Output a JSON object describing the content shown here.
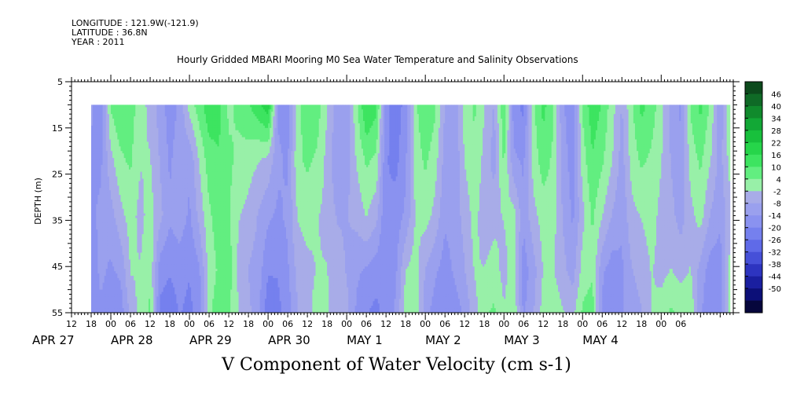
{
  "header": {
    "longitude": "LONGITUDE : 121.9W(-121.9)",
    "latitude": "LATITUDE : 36.8N",
    "year": "YEAR : 2011"
  },
  "chart_data": {
    "type": "heatmap",
    "title": "Hourly Gridded MBARI Mooring M0 Sea Water Temperature and Salinity Observations",
    "xlabel": "V Component of Water Velocity (cm s-1)",
    "ylabel": "DEPTH (m)",
    "yticks": [
      5,
      15,
      25,
      35,
      45,
      55
    ],
    "ylim": [
      5,
      55
    ],
    "y_reversed": true,
    "data_depth_range": [
      10,
      55
    ],
    "x_hours_range": [
      12,
      214
    ],
    "data_start_hour": 18,
    "data_end_hour": 213,
    "hour_tick_labels": [
      "12",
      "18",
      "00",
      "06",
      "12",
      "18",
      "00",
      "06",
      "12",
      "18",
      "00",
      "06",
      "12",
      "18",
      "00",
      "06",
      "12",
      "18",
      "00",
      "06",
      "12",
      "18",
      "00",
      "06",
      "12",
      "18",
      "00",
      "06",
      "12",
      "18",
      "00",
      "06"
    ],
    "date_labels": [
      {
        "label": "APR 27",
        "hour": 0
      },
      {
        "label": "APR 28",
        "hour": 24
      },
      {
        "label": "APR 29",
        "hour": 48
      },
      {
        "label": "APR 30",
        "hour": 72
      },
      {
        "label": "MAY  1",
        "hour": 96
      },
      {
        "label": "MAY  2",
        "hour": 120
      },
      {
        "label": "MAY  3",
        "hour": 144
      },
      {
        "label": "MAY  4",
        "hour": 168
      }
    ],
    "colorbar_labels": [
      "46",
      "40",
      "34",
      "28",
      "22",
      "16",
      "10",
      "4",
      "-2",
      "-8",
      "-14",
      "-20",
      "-26",
      "-32",
      "-38",
      "-44",
      "-50"
    ],
    "colorbar_colors": [
      "#0c4a1c",
      "#0f6a26",
      "#108a2c",
      "#12a836",
      "#18c03c",
      "#26d54a",
      "#3de460",
      "#62ee80",
      "#98f0a8",
      "#a8ace8",
      "#9aa0ee",
      "#8a92f0",
      "#7580ee",
      "#5f6ae8",
      "#4650d8",
      "#2d34c0",
      "#1a1fa0",
      "#0c0f78",
      "#06063c"
    ],
    "value_range": [
      -50,
      52
    ],
    "field": {
      "depth_centers": [
        10,
        22,
        34,
        46,
        55
      ],
      "columns": [
        {
          "hour": 18,
          "values": [
            -6,
            -8,
            -8,
            -10,
            -8
          ]
        },
        {
          "hour": 21,
          "values": [
            -12,
            -8,
            -6,
            -6,
            -8
          ]
        },
        {
          "hour": 24,
          "values": [
            10,
            2,
            -4,
            -8,
            -10
          ]
        },
        {
          "hour": 27,
          "values": [
            14,
            8,
            2,
            -6,
            -10
          ]
        },
        {
          "hour": 30,
          "values": [
            12,
            10,
            6,
            4,
            0
          ]
        },
        {
          "hour": 33,
          "values": [
            6,
            4,
            2,
            4,
            6
          ]
        },
        {
          "hour": 36,
          "values": [
            2,
            4,
            6,
            8,
            10
          ]
        },
        {
          "hour": 39,
          "values": [
            -4,
            -2,
            0,
            -10,
            -14
          ]
        },
        {
          "hour": 42,
          "values": [
            -10,
            -8,
            -6,
            -12,
            -16
          ]
        },
        {
          "hour": 45,
          "values": [
            -6,
            -4,
            -4,
            -10,
            -12
          ]
        },
        {
          "hour": 48,
          "values": [
            6,
            -6,
            -8,
            -12,
            -14
          ]
        },
        {
          "hour": 51,
          "values": [
            12,
            4,
            0,
            -8,
            -10
          ]
        },
        {
          "hour": 54,
          "values": [
            18,
            12,
            8,
            6,
            8
          ]
        },
        {
          "hour": 57,
          "values": [
            16,
            14,
            12,
            10,
            12
          ]
        },
        {
          "hour": 60,
          "values": [
            8,
            10,
            10,
            12,
            10
          ]
        },
        {
          "hour": 63,
          "values": [
            10,
            8,
            4,
            2,
            4
          ]
        },
        {
          "hour": 66,
          "values": [
            14,
            6,
            2,
            -2,
            0
          ]
        },
        {
          "hour": 69,
          "values": [
            18,
            4,
            -2,
            -4,
            -6
          ]
        },
        {
          "hour": 72,
          "values": [
            24,
            2,
            -6,
            -12,
            -16
          ]
        },
        {
          "hour": 75,
          "values": [
            -8,
            -6,
            -8,
            -12,
            -14
          ]
        },
        {
          "hour": 78,
          "values": [
            -10,
            -8,
            -6,
            -8,
            -10
          ]
        },
        {
          "hour": 81,
          "values": [
            6,
            8,
            4,
            0,
            -2
          ]
        },
        {
          "hour": 84,
          "values": [
            14,
            10,
            6,
            2,
            2
          ]
        },
        {
          "hour": 87,
          "values": [
            12,
            8,
            4,
            4,
            6
          ]
        },
        {
          "hour": 90,
          "values": [
            4,
            2,
            2,
            4,
            4
          ]
        },
        {
          "hour": 93,
          "values": [
            -4,
            -6,
            -2,
            0,
            2
          ]
        },
        {
          "hour": 96,
          "values": [
            -6,
            -4,
            -2,
            -2,
            0
          ]
        },
        {
          "hour": 99,
          "values": [
            8,
            4,
            0,
            -6,
            -8
          ]
        },
        {
          "hour": 102,
          "values": [
            20,
            10,
            4,
            -8,
            -12
          ]
        },
        {
          "hour": 105,
          "values": [
            16,
            8,
            0,
            -10,
            -14
          ]
        },
        {
          "hour": 108,
          "values": [
            -10,
            -12,
            -12,
            -12,
            -10
          ]
        },
        {
          "hour": 111,
          "values": [
            -16,
            -14,
            -10,
            -8,
            -6
          ]
        },
        {
          "hour": 114,
          "values": [
            -10,
            -8,
            -6,
            4,
            6
          ]
        },
        {
          "hour": 117,
          "values": [
            8,
            6,
            4,
            6,
            8
          ]
        },
        {
          "hour": 120,
          "values": [
            14,
            10,
            6,
            -2,
            -4
          ]
        },
        {
          "hour": 123,
          "values": [
            10,
            6,
            2,
            -6,
            -10
          ]
        },
        {
          "hour": 126,
          "values": [
            -2,
            -4,
            -6,
            -10,
            -12
          ]
        },
        {
          "hour": 129,
          "values": [
            -6,
            -6,
            -4,
            -6,
            -10
          ]
        },
        {
          "hour": 132,
          "values": [
            6,
            4,
            0,
            -2,
            -6
          ]
        },
        {
          "hour": 135,
          "values": [
            10,
            8,
            6,
            4,
            2
          ]
        },
        {
          "hour": 138,
          "values": [
            4,
            2,
            0,
            4,
            8
          ]
        },
        {
          "hour": 141,
          "values": [
            -2,
            -4,
            2,
            6,
            10
          ]
        },
        {
          "hour": 144,
          "values": [
            14,
            10,
            4,
            2,
            4
          ]
        },
        {
          "hour": 147,
          "values": [
            -10,
            -6,
            6,
            6,
            8
          ]
        },
        {
          "hour": 150,
          "values": [
            -14,
            -8,
            -6,
            -10,
            -8
          ]
        },
        {
          "hour": 153,
          "values": [
            8,
            6,
            2,
            -4,
            -2
          ]
        },
        {
          "hour": 156,
          "values": [
            16,
            12,
            6,
            4,
            6
          ]
        },
        {
          "hour": 159,
          "values": [
            10,
            8,
            6,
            4,
            8
          ]
        },
        {
          "hour": 162,
          "values": [
            -6,
            -4,
            -2,
            0,
            4
          ]
        },
        {
          "hour": 165,
          "values": [
            -12,
            -10,
            -8,
            -4,
            2
          ]
        },
        {
          "hour": 168,
          "values": [
            10,
            6,
            2,
            6,
            10
          ]
        },
        {
          "hour": 171,
          "values": [
            18,
            14,
            10,
            8,
            12
          ]
        },
        {
          "hour": 174,
          "values": [
            14,
            10,
            4,
            -6,
            -8
          ]
        },
        {
          "hour": 177,
          "values": [
            6,
            4,
            -2,
            -10,
            -12
          ]
        },
        {
          "hour": 180,
          "values": [
            -2,
            -4,
            -6,
            -8,
            -8
          ]
        },
        {
          "hour": 183,
          "values": [
            8,
            6,
            2,
            -2,
            -4
          ]
        },
        {
          "hour": 186,
          "values": [
            16,
            10,
            4,
            0,
            -2
          ]
        },
        {
          "hour": 189,
          "values": [
            12,
            8,
            6,
            4,
            4
          ]
        },
        {
          "hour": 192,
          "values": [
            6,
            4,
            2,
            2,
            6
          ]
        },
        {
          "hour": 195,
          "values": [
            -4,
            -2,
            0,
            4,
            10
          ]
        },
        {
          "hour": 198,
          "values": [
            -8,
            -6,
            -4,
            2,
            8
          ]
        },
        {
          "hour": 201,
          "values": [
            10,
            6,
            2,
            4,
            8
          ]
        },
        {
          "hour": 204,
          "values": [
            16,
            10,
            6,
            -4,
            -6
          ]
        },
        {
          "hour": 207,
          "values": [
            8,
            4,
            -2,
            -10,
            -12
          ]
        },
        {
          "hour": 210,
          "values": [
            -6,
            -4,
            -6,
            -10,
            -12
          ]
        },
        {
          "hour": 213,
          "values": [
            10,
            6,
            2,
            6,
            8
          ]
        }
      ]
    }
  }
}
